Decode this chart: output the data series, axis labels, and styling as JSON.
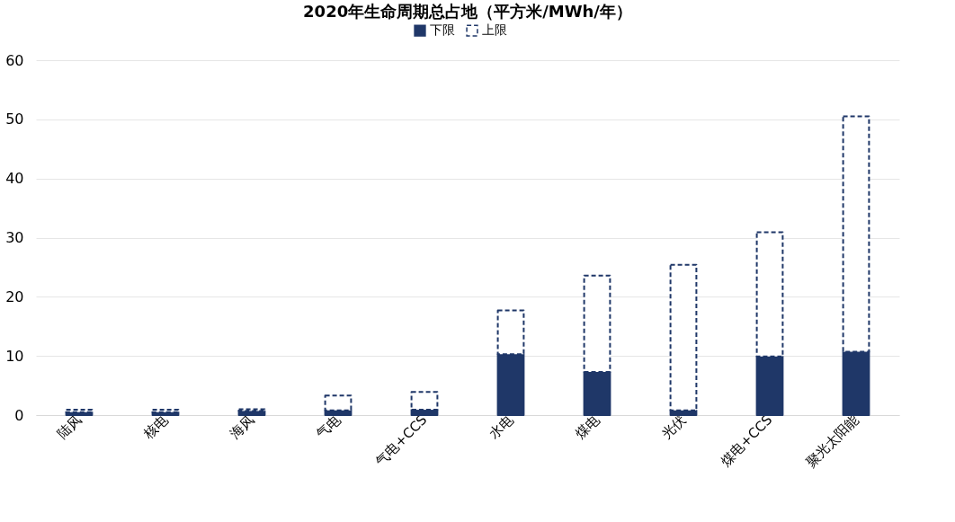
{
  "chart_data": {
    "type": "bar",
    "title": "2020年生命周期总占地（平方米/MWh/年）",
    "categories": [
      "陆风",
      "核电",
      "海风",
      "气电",
      "气电+CCS",
      "水电",
      "煤电",
      "光伏",
      "煤电+CCS",
      "聚光太阳能"
    ],
    "stacked": true,
    "series": [
      {
        "name": "下限",
        "color": "#1f3768",
        "values": [
          0.5,
          0.5,
          0.7,
          0.8,
          0.9,
          10.3,
          7.3,
          0.8,
          9.9,
          10.7
        ]
      },
      {
        "name": "上限",
        "color": "#1f3768",
        "line_style": "dashed",
        "values": [
          0.4,
          0.4,
          0.3,
          2.5,
          3.0,
          7.4,
          16.3,
          24.6,
          21.0,
          39.8
        ]
      }
    ],
    "ylim": [
      0,
      60
    ],
    "yticks": [
      0,
      10,
      20,
      30,
      40,
      50,
      60
    ],
    "grid": "y",
    "legend": "top"
  }
}
